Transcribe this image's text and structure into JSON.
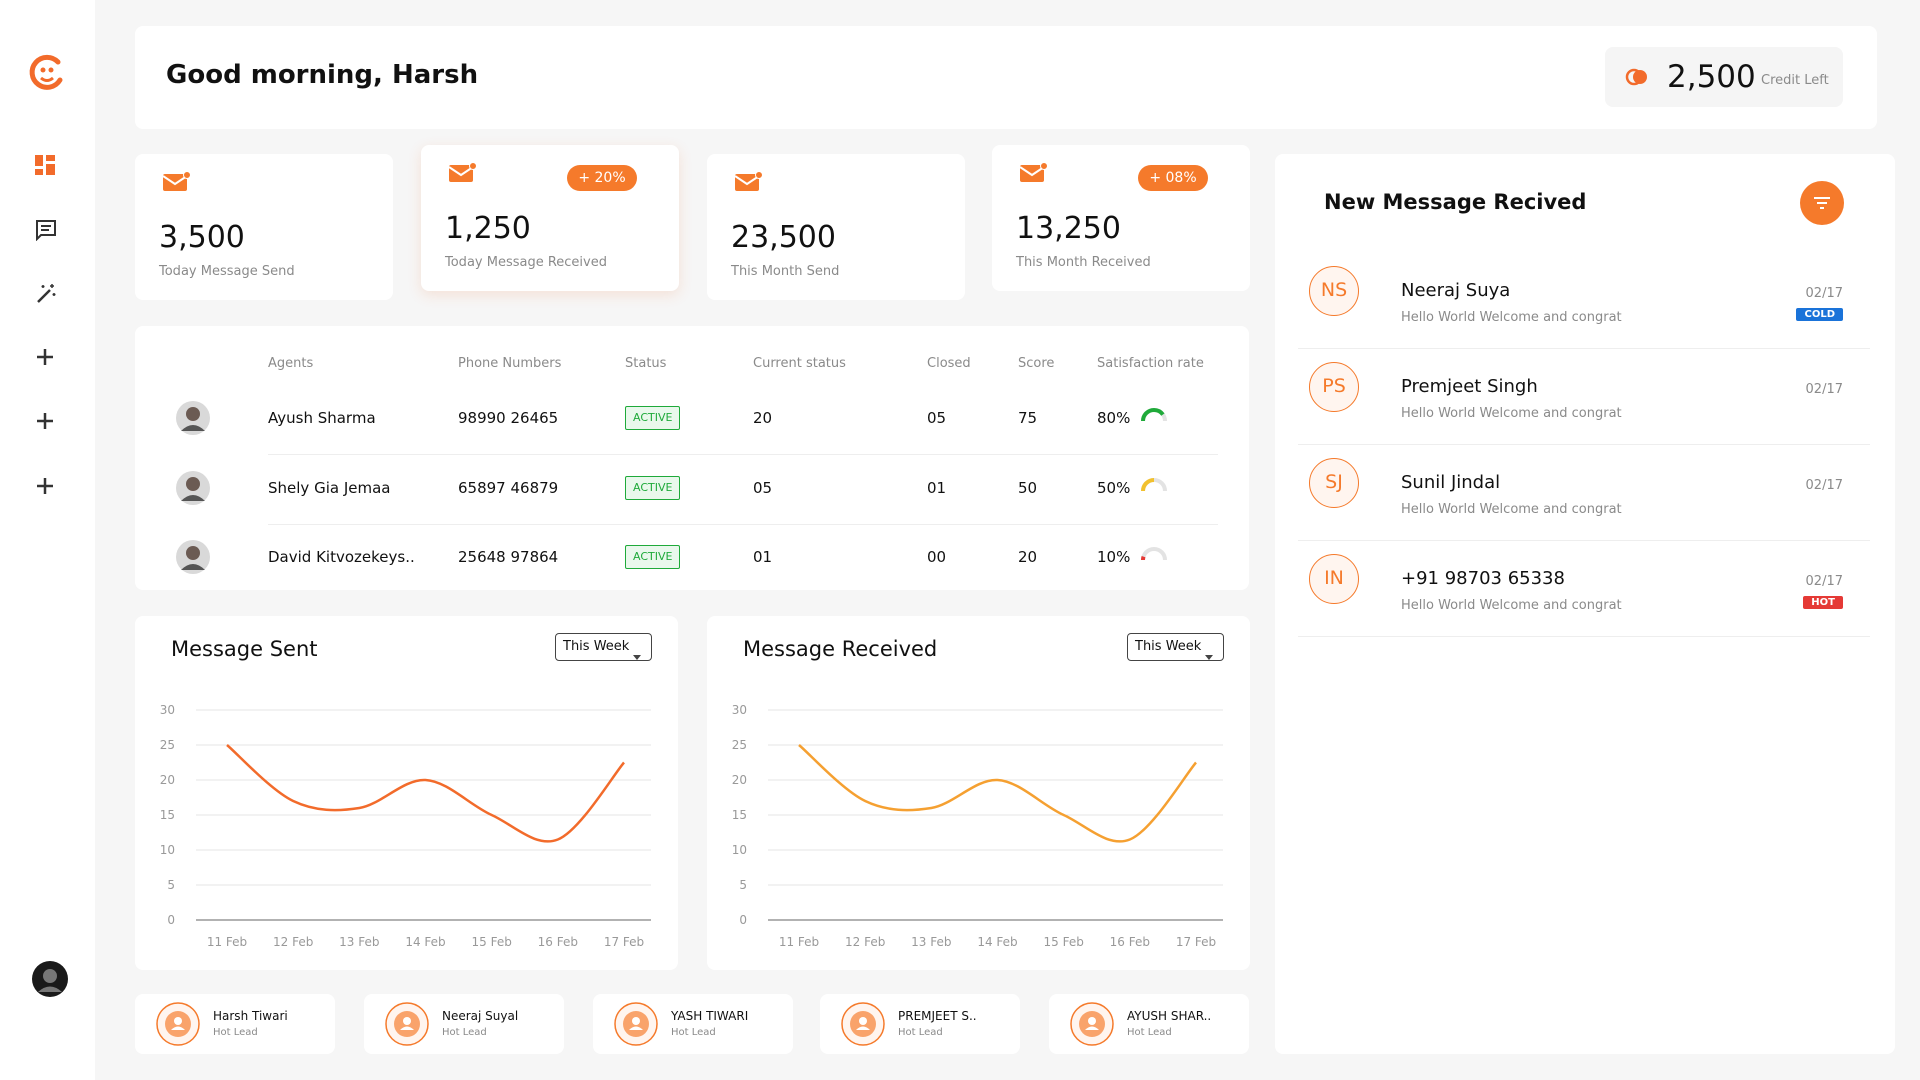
{
  "header": {
    "greeting": "Good morning, Harsh",
    "credits": "2,500",
    "credits_label": "Credit Left"
  },
  "stats": [
    {
      "value": "3,500",
      "label": "Today Message Send"
    },
    {
      "value": "1,250",
      "label": "Today Message Received",
      "badge": "+ 20%"
    },
    {
      "value": "23,500",
      "label": "This Month Send"
    },
    {
      "value": "13,250",
      "label": "This Month Received",
      "badge": "+ 08%"
    }
  ],
  "agents": {
    "columns": [
      "Agents",
      "Phone Numbers",
      "Status",
      "Current status",
      "Closed",
      "Score",
      "Satisfaction rate"
    ],
    "rows": [
      {
        "name": "Ayush Sharma",
        "phone": "98990 26465",
        "status": "ACTIVE",
        "current": "20",
        "closed": "05",
        "score": "75",
        "satisfaction": 80,
        "satisfaction_label": "80%",
        "gauge_color": "#1faa3a"
      },
      {
        "name": "Shely Gia Jemaa",
        "phone": "65897 46879",
        "status": "ACTIVE",
        "current": "05",
        "closed": "01",
        "score": "50",
        "satisfaction": 50,
        "satisfaction_label": "50%",
        "gauge_color": "#f2c12e"
      },
      {
        "name": "David Kitvozekeys..",
        "phone": "25648 97864",
        "status": "ACTIVE",
        "current": "01",
        "closed": "00",
        "score": "20",
        "satisfaction": 10,
        "satisfaction_label": "10%",
        "gauge_color": "#e53935"
      }
    ]
  },
  "chart_data": [
    {
      "type": "line",
      "title": "Message Sent",
      "dropdown": "This Week",
      "categories": [
        "11 Feb",
        "12 Feb",
        "13 Feb",
        "14 Feb",
        "15 Feb",
        "16 Feb",
        "17 Feb"
      ],
      "values": [
        25,
        17,
        16,
        20,
        15,
        11.5,
        22.5
      ],
      "color": "#f26b2b",
      "ylim": [
        0,
        30
      ],
      "yticks": [
        0,
        5,
        10,
        15,
        20,
        25,
        30
      ],
      "grid": true
    },
    {
      "type": "line",
      "title": "Message Received",
      "dropdown": "This Week",
      "categories": [
        "11 Feb",
        "12 Feb",
        "13 Feb",
        "14 Feb",
        "15 Feb",
        "16 Feb",
        "17 Feb"
      ],
      "values": [
        25,
        17,
        16,
        20,
        15,
        11.5,
        22.5
      ],
      "color": "#f5a031",
      "ylim": [
        0,
        30
      ],
      "yticks": [
        0,
        5,
        10,
        15,
        20,
        25,
        30
      ],
      "grid": true
    }
  ],
  "messages": {
    "title": "New Message Recived",
    "items": [
      {
        "initials": "NS",
        "name": "Neeraj Suya",
        "text": "Hello World Welcome and congrat",
        "date": "02/17",
        "tag": "COLD",
        "tag_color": "#1a73d9"
      },
      {
        "initials": "PS",
        "name": "Premjeet Singh",
        "text": "Hello World Welcome and congrat",
        "date": "02/17"
      },
      {
        "initials": "SJ",
        "name": "Sunil Jindal",
        "text": "Hello World Welcome and congrat",
        "date": "02/17"
      },
      {
        "initials": "IN",
        "name": "+91 98703 65338",
        "text": "Hello World Welcome and congrat",
        "date": "02/17",
        "tag": "HOT",
        "tag_color": "#e53935"
      }
    ]
  },
  "leads": [
    {
      "name": "Harsh Tiwari",
      "type": "Hot Lead"
    },
    {
      "name": "Neeraj Suyal",
      "type": "Hot Lead"
    },
    {
      "name": "YASH TIWARI",
      "type": "Hot Lead"
    },
    {
      "name": "PREMJEET S..",
      "type": "Hot Lead"
    },
    {
      "name": "AYUSH SHAR..",
      "type": "Hot Lead"
    }
  ]
}
